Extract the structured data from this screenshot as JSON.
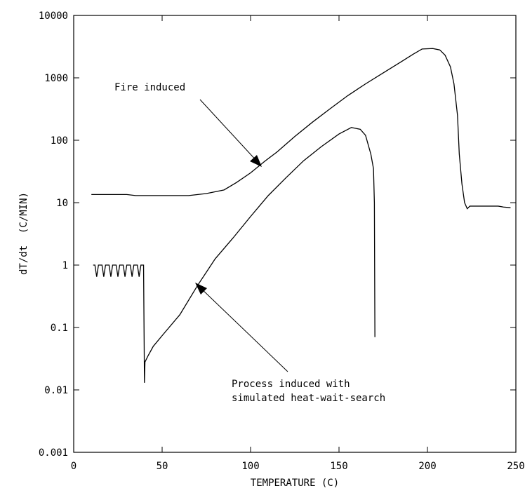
{
  "chart_data": {
    "type": "line",
    "x_label": "TEMPERATURE (C)",
    "y_label": "dT/dt  (C/MIN)",
    "xlim": [
      0,
      250
    ],
    "xticks": [
      0,
      50,
      100,
      150,
      200,
      250
    ],
    "ylim": [
      0.001,
      10000
    ],
    "yticks": [
      0.001,
      0.01,
      0.1,
      1,
      10,
      100,
      1000,
      10000
    ],
    "log_y": true,
    "annotations": [
      {
        "text": "Fire induced"
      },
      {
        "text": "Process induced with\nsimulated heat-wait-search"
      }
    ],
    "series": [
      {
        "color": "#000000",
        "x": [
          10,
          30,
          35,
          50,
          65,
          75,
          85,
          92,
          100,
          108,
          115,
          125,
          135,
          145,
          155,
          165,
          175,
          185,
          192,
          197,
          203,
          207,
          210,
          213,
          215,
          217,
          218,
          219.5,
          221,
          222.5,
          224,
          230,
          240,
          243,
          247
        ],
        "values": [
          13.5,
          13.5,
          13,
          13,
          13,
          14,
          16,
          21,
          30,
          46,
          65,
          115,
          195,
          320,
          520,
          800,
          1200,
          1800,
          2400,
          2900,
          2950,
          2800,
          2300,
          1500,
          800,
          250,
          60,
          20,
          10,
          8,
          8.8,
          8.8,
          8.8,
          8.5,
          8.3
        ]
      },
      {
        "color": "#000000",
        "x": [
          11,
          12,
          13,
          14,
          16,
          17,
          18,
          20,
          21,
          22,
          24,
          25,
          26,
          28,
          29,
          30,
          32,
          33,
          34,
          36,
          37,
          38,
          39,
          39.5,
          40,
          40.3,
          42,
          45,
          50,
          60,
          70,
          80,
          90,
          100,
          110,
          120,
          130,
          140,
          150,
          157,
          162,
          165,
          168,
          169.5,
          170,
          170.3
        ],
        "values": [
          1,
          1,
          0.65,
          1,
          1,
          0.65,
          1,
          1,
          0.65,
          1,
          1,
          0.65,
          1,
          1,
          0.65,
          1,
          1,
          0.65,
          1,
          1,
          0.65,
          1,
          1,
          1,
          0.013,
          0.028,
          0.035,
          0.05,
          0.074,
          0.16,
          0.47,
          1.26,
          2.7,
          6,
          13,
          25,
          47,
          79,
          126,
          160,
          150,
          120,
          60,
          35,
          10,
          0.07
        ]
      }
    ]
  }
}
